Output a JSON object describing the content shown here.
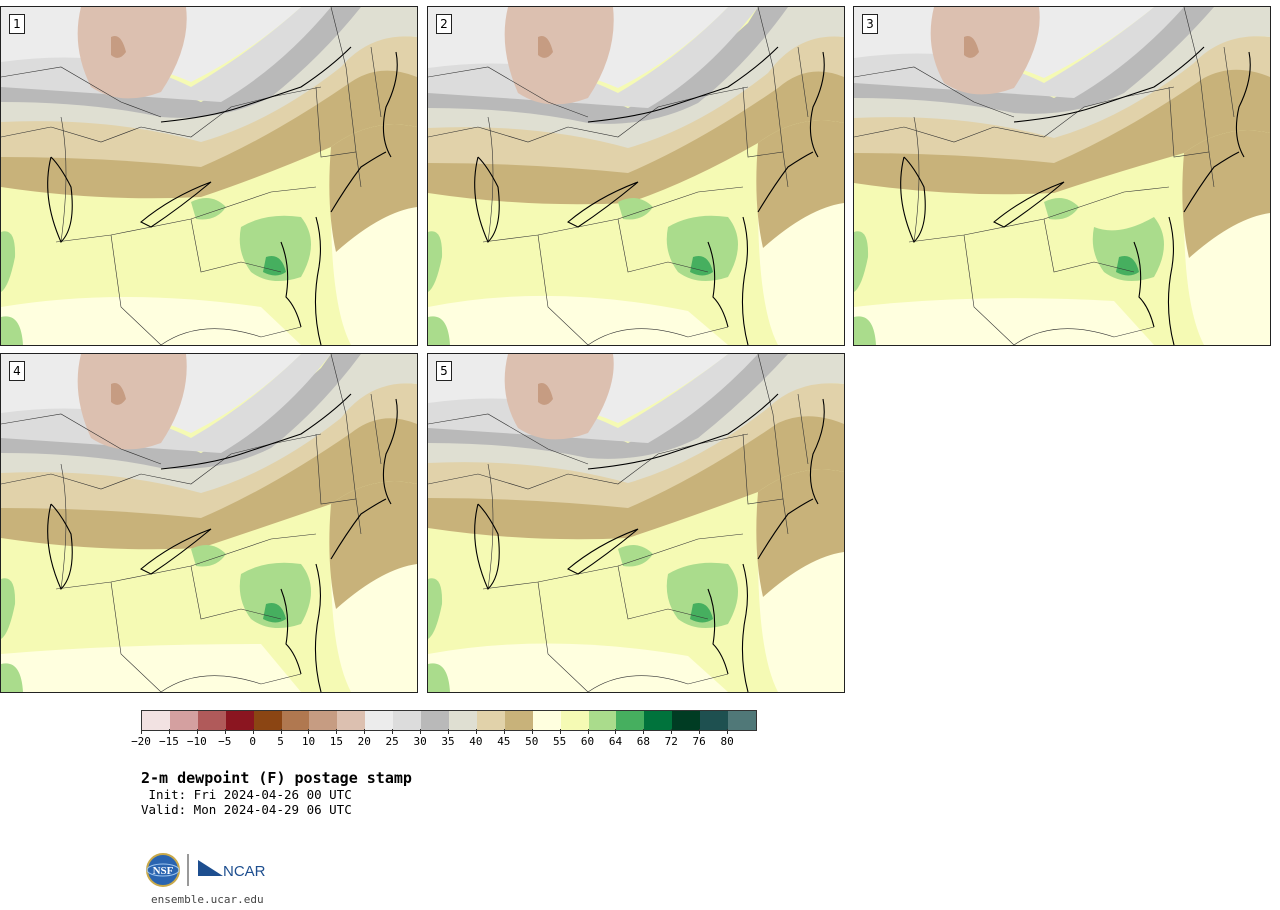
{
  "panels": [
    {
      "label": "1"
    },
    {
      "label": "2"
    },
    {
      "label": "3"
    },
    {
      "label": "4"
    },
    {
      "label": "5"
    }
  ],
  "colorbar": {
    "colors": [
      "#f2e2e2",
      "#d4a0a0",
      "#b05a5a",
      "#8b1520",
      "#8b4513",
      "#b07850",
      "#c69c82",
      "#dcc0b0",
      "#ececec",
      "#dcdcdc",
      "#b9b9b9",
      "#dfdfd2",
      "#e1d2aa",
      "#c8b27a",
      "#ffffdf",
      "#f5fab4",
      "#aadc8c",
      "#46af5f",
      "#00733c",
      "#003c23",
      "#1e5050",
      "#507878"
    ],
    "ticks": [
      "−20",
      "−15",
      "−10",
      "−5",
      "0",
      "5",
      "10",
      "15",
      "20",
      "25",
      "30",
      "35",
      "40",
      "45",
      "50",
      "55",
      "60",
      "64",
      "68",
      "72",
      "76",
      "80"
    ]
  },
  "title": "2-m dewpoint (F) postage stamp",
  "init": " Init: Fri 2024-04-26 00 UTC",
  "valid": "Valid: Mon 2024-04-29 06 UTC",
  "logo": {
    "left_text": "NSF",
    "right_text": "NCAR",
    "colors": {
      "nsf": "#2a64b0",
      "ncar": "#1d4e8f"
    }
  },
  "url": "ensemble.ucar.edu"
}
